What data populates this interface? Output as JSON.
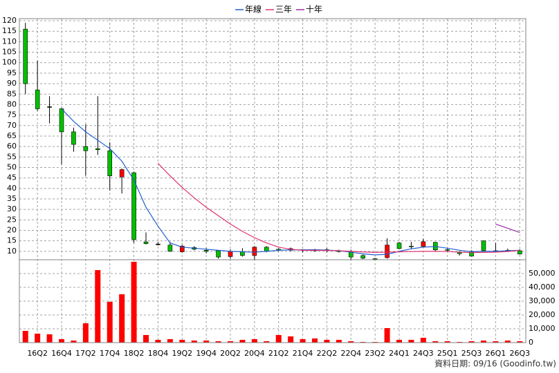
{
  "chart_data": [
    {
      "type": "candlestick",
      "categories": [
        null,
        "16Q2",
        null,
        "16Q4",
        null,
        "17Q2",
        null,
        "17Q4",
        null,
        "18Q2",
        null,
        "18Q4",
        null,
        "19Q2",
        null,
        "19Q4",
        null,
        "20Q2",
        null,
        "20Q4",
        null,
        "21Q2",
        null,
        "21Q4",
        null,
        "22Q2",
        null,
        "22Q4",
        null,
        "23Q2",
        null,
        "24Q1",
        null,
        "24Q3",
        null,
        "25Q1",
        null,
        "25Q3",
        null,
        "26Q1",
        null,
        "26Q3"
      ],
      "open": [
        116,
        87,
        79,
        78,
        67,
        60,
        59,
        58,
        45.5,
        47.5,
        14.5,
        13.5,
        13,
        9.8,
        11.8,
        10.5,
        10.3,
        7.5,
        9.8,
        8,
        12,
        11,
        10.5,
        10.8,
        10.6,
        10.8,
        10.2,
        10,
        8,
        6.5,
        7,
        14,
        12.5,
        12.3,
        14.3,
        10.8,
        9.5,
        10,
        15,
        10.3,
        10.5,
        10.3
      ],
      "high": [
        119,
        101,
        84,
        78.5,
        69,
        70.6,
        84,
        62,
        49.5,
        48,
        19,
        14.5,
        14.5,
        13.2,
        12.5,
        11.5,
        10.5,
        11,
        11.5,
        12.5,
        12.5,
        11.5,
        11.8,
        11,
        11.2,
        11.5,
        10.8,
        10.8,
        8.5,
        6.8,
        16.2,
        14.5,
        14.5,
        16,
        14.5,
        11.5,
        10,
        10.5,
        15.2,
        14,
        11.3,
        11
      ],
      "low": [
        85,
        77,
        71,
        51.5,
        57.5,
        46,
        56,
        39,
        37.6,
        14,
        13.3,
        12.8,
        9.8,
        9.4,
        10.5,
        9,
        6.5,
        6.5,
        7.5,
        6,
        9.5,
        10,
        10,
        9.5,
        9.8,
        9.5,
        9.5,
        6,
        6.3,
        6,
        6.5,
        11,
        11,
        12,
        10,
        9.8,
        8,
        7.5,
        10,
        9.5,
        10,
        8.5
      ],
      "close": [
        90,
        78,
        79,
        67,
        61,
        58,
        58.5,
        46,
        49,
        15.6,
        13.7,
        13.5,
        10,
        12.5,
        11,
        10,
        7.3,
        10,
        8,
        12,
        10,
        10.5,
        11.3,
        10.5,
        10.4,
        10.5,
        10,
        7.3,
        6.7,
        6.3,
        13,
        11.3,
        12.3,
        14.6,
        10.7,
        10.6,
        8.9,
        7.7,
        10.3,
        10.2,
        10.3,
        8.7
      ],
      "up_color": "#ff0000",
      "down_color": "#00c000",
      "flat_color": "#000000",
      "series": [
        {
          "name": "年線",
          "color": "#1f5fd0",
          "values": [
            null,
            null,
            null,
            78,
            72,
            67,
            63,
            59,
            53,
            44,
            31,
            22,
            14,
            12,
            11.5,
            11,
            10.5,
            10,
            9.8,
            9.6,
            10,
            10.5,
            10.7,
            10.7,
            10.8,
            10.6,
            10.3,
            9.6,
            8.8,
            8.3,
            8.6,
            10,
            11.2,
            12,
            12.3,
            11.5,
            10.5,
            9.8,
            10,
            10,
            10.3,
            10.5
          ]
        },
        {
          "name": "三年",
          "color": "#e0306f",
          "values": [
            null,
            null,
            null,
            null,
            null,
            null,
            null,
            null,
            null,
            null,
            null,
            52,
            46,
            40.5,
            35.5,
            31,
            27,
            23,
            19.5,
            16.5,
            14,
            12,
            11,
            10.5,
            10.5,
            10.4,
            10.3,
            10,
            9.7,
            9.5,
            9.6,
            9.8,
            9.9,
            10,
            10,
            9.9,
            9.6,
            9.4,
            9.5,
            9.6,
            9.9,
            10.5
          ]
        },
        {
          "name": "十年",
          "color": "#9a2aa8",
          "values": [
            null,
            null,
            null,
            null,
            null,
            null,
            null,
            null,
            null,
            null,
            null,
            null,
            null,
            null,
            null,
            null,
            null,
            null,
            null,
            null,
            null,
            null,
            null,
            null,
            null,
            null,
            null,
            null,
            null,
            null,
            null,
            null,
            null,
            null,
            null,
            null,
            null,
            null,
            null,
            23,
            21,
            19
          ]
        }
      ],
      "ylim": [
        6,
        121
      ],
      "yticks": [
        10,
        15,
        20,
        25,
        30,
        35,
        40,
        45,
        50,
        55,
        60,
        65,
        70,
        75,
        80,
        85,
        90,
        95,
        100,
        105,
        110,
        115,
        120
      ],
      "grid": true,
      "legend": "top"
    },
    {
      "type": "bar",
      "values": [
        8500,
        6500,
        6000,
        2500,
        1500,
        14000,
        52500,
        29500,
        35000,
        58500,
        5500,
        2000,
        2500,
        2000,
        1500,
        1500,
        1000,
        1000,
        2000,
        2500,
        1000,
        5500,
        4500,
        2500,
        3000,
        2000,
        2000,
        1000,
        500,
        500,
        10500,
        2000,
        2000,
        3500,
        1000,
        1000,
        500,
        1000,
        1500,
        1000,
        1500,
        1000
      ],
      "color": "#ff0000",
      "ylim": [
        0,
        60000
      ],
      "yticks": [
        0,
        {
          "value": 10000,
          "label": "10,000"
        },
        {
          "value": 20000,
          "label": "20,000"
        },
        {
          "value": 30000,
          "label": "30,000"
        },
        {
          "value": 40000,
          "label": "40,000"
        },
        {
          "value": 50000,
          "label": "50,000"
        }
      ],
      "grid": true,
      "footnote": "資料日期: 09/16 (Goodinfo.tw)"
    }
  ]
}
